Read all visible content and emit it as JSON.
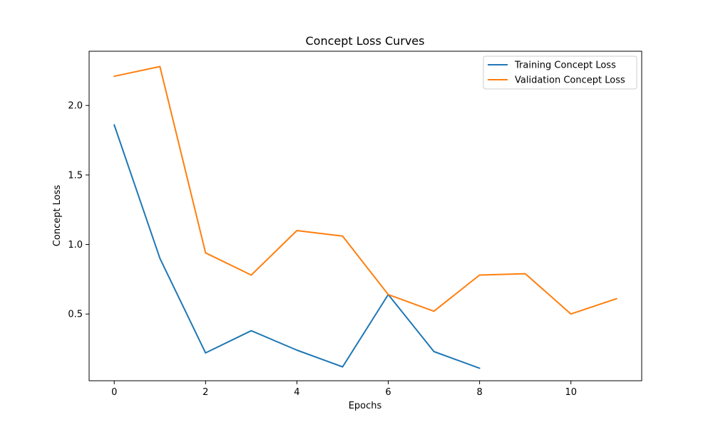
{
  "chart_data": {
    "type": "line",
    "title": "Concept Loss Curves",
    "xlabel": "Epochs",
    "ylabel": "Concept Loss",
    "xlim": [
      -0.55,
      11.55
    ],
    "ylim": [
      0.02,
      2.39
    ],
    "xticks": [
      0,
      2,
      4,
      6,
      8,
      10
    ],
    "xtick_labels": [
      "0",
      "2",
      "4",
      "6",
      "8",
      "10"
    ],
    "yticks": [
      0.5,
      1.0,
      1.5,
      2.0
    ],
    "ytick_labels": [
      "0.5",
      "1.0",
      "1.5",
      "2.0"
    ],
    "grid": false,
    "legend_position": "top-right",
    "series": [
      {
        "name": "Training Concept Loss",
        "color": "#1f77b4",
        "x": [
          0,
          1,
          2,
          3,
          4,
          5,
          6,
          7,
          8
        ],
        "values": [
          1.86,
          0.9,
          0.22,
          0.38,
          0.24,
          0.12,
          0.64,
          0.23,
          0.11
        ]
      },
      {
        "name": "Validation Concept Loss",
        "color": "#ff7f0e",
        "x": [
          0,
          1,
          2,
          3,
          4,
          5,
          6,
          7,
          8,
          9,
          10,
          11
        ],
        "values": [
          2.21,
          2.28,
          0.94,
          0.78,
          1.1,
          1.06,
          0.64,
          0.52,
          0.78,
          0.79,
          0.5,
          0.61
        ]
      }
    ]
  }
}
